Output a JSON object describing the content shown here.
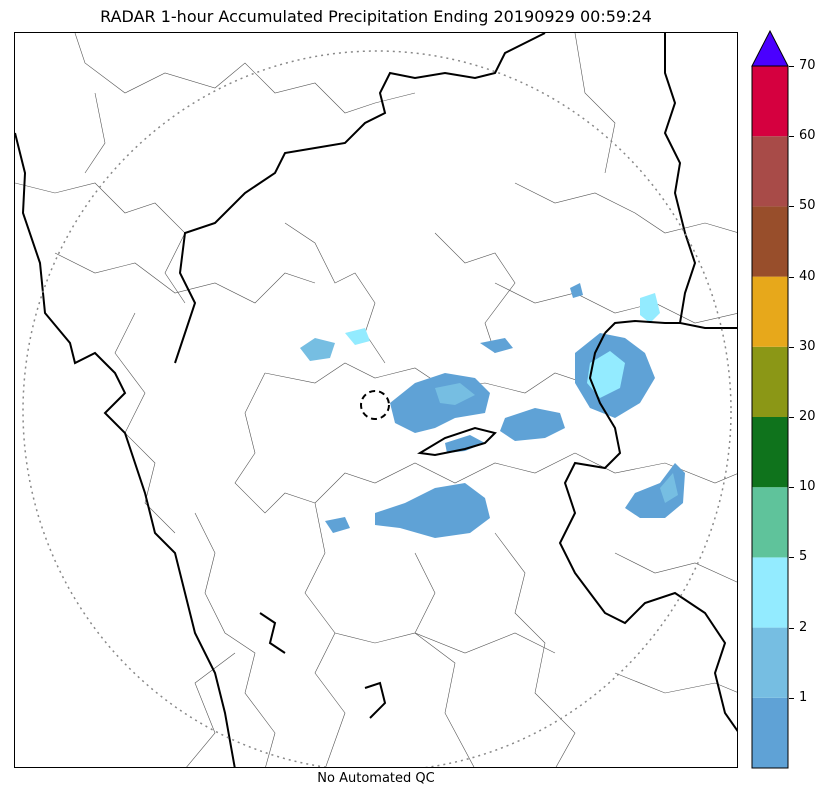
{
  "title": "RADAR 1-hour Accumulated Precipitation Ending 20190929 00:59:24",
  "footer": "No Automated QC",
  "colorbar": {
    "levels": [
      {
        "label": "1",
        "color": "#5fa2d6"
      },
      {
        "label": "2",
        "color": "#76bee2"
      },
      {
        "label": "5",
        "color": "#93ebff"
      },
      {
        "label": "10",
        "color": "#5fc39b"
      },
      {
        "label": "20",
        "color": "#0f731c"
      },
      {
        "label": "30",
        "color": "#8b9716"
      },
      {
        "label": "40",
        "color": "#e7a81b"
      },
      {
        "label": "50",
        "color": "#984e2b"
      },
      {
        "label": "60",
        "color": "#a84b48"
      },
      {
        "label": "70",
        "color": "#d5003f"
      }
    ],
    "extend_color": "#4a00ff"
  },
  "legend_colors": {
    "light_rain": "#5fa2d6",
    "moderate": "#76bee2",
    "heavy": "#93ebff"
  },
  "map": {
    "range_ring": "dotted",
    "radar_site_marker": "dashed-circle"
  }
}
